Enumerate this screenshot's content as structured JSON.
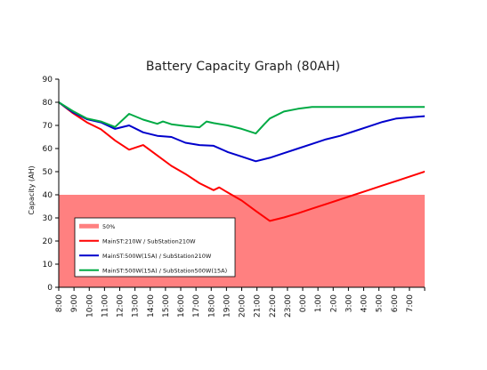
{
  "chart_data": {
    "type": "line",
    "title": "Battery Capacity Graph (80AH)",
    "ylabel": "Capacity (AH)",
    "xlabel": "",
    "ylim": [
      0,
      90
    ],
    "yticks": [
      "0",
      "10",
      "20",
      "30",
      "40",
      "50",
      "60",
      "70",
      "80",
      "90"
    ],
    "categories": [
      "8:00",
      "9:00",
      "10:00",
      "11:00",
      "12:00",
      "13:00",
      "14:00",
      "15:00",
      "16:00",
      "17:00",
      "18:00",
      "19:00",
      "20:00",
      "21:00",
      "22:00",
      "23:00",
      "0:00",
      "1:00",
      "2:00",
      "3:00",
      "4:00",
      "5:00",
      "6:00",
      "7:00"
    ],
    "x_range": [
      0,
      26
    ],
    "grid": "none",
    "legend_placement": "lower-left",
    "band": {
      "name": "50%",
      "from": 0,
      "to": 40,
      "color": "#ff8080"
    },
    "series": [
      {
        "name": "MainST:210W / SubStation210W",
        "color": "#ff0000",
        "points": [
          [
            0,
            80
          ],
          [
            1,
            75.3
          ],
          [
            2,
            71.3
          ],
          [
            3,
            68.3
          ],
          [
            4,
            63.5
          ],
          [
            5,
            59.5
          ],
          [
            6,
            61.5
          ],
          [
            7,
            57
          ],
          [
            8,
            52.5
          ],
          [
            9,
            49
          ],
          [
            10,
            45
          ],
          [
            11,
            42
          ],
          [
            11.4,
            43.2
          ],
          [
            12,
            41
          ],
          [
            13,
            37.5
          ],
          [
            14,
            33
          ],
          [
            15,
            28.7
          ],
          [
            16,
            30.2
          ],
          [
            17,
            32
          ],
          [
            18,
            34
          ],
          [
            19,
            36
          ],
          [
            20,
            38
          ],
          [
            21,
            40
          ],
          [
            22,
            42
          ],
          [
            23,
            44
          ],
          [
            24,
            46
          ],
          [
            25,
            48
          ],
          [
            26,
            50
          ],
          [
            27,
            52.5
          ]
        ]
      },
      {
        "name": "MainST:500W(15A) / SubStation210W",
        "color": "#0000cc",
        "points": [
          [
            0,
            80
          ],
          [
            1,
            75.7
          ],
          [
            2,
            72.7
          ],
          [
            3,
            71.3
          ],
          [
            4,
            68.5
          ],
          [
            5,
            70
          ],
          [
            6,
            67
          ],
          [
            7,
            65.5
          ],
          [
            8,
            65
          ],
          [
            9,
            62.5
          ],
          [
            10,
            61.5
          ],
          [
            11,
            61.2
          ],
          [
            12,
            58.5
          ],
          [
            13,
            56.5
          ],
          [
            14,
            54.5
          ],
          [
            15,
            56
          ],
          [
            16,
            58
          ],
          [
            17,
            60
          ],
          [
            18,
            62
          ],
          [
            19,
            64
          ],
          [
            20,
            65.5
          ],
          [
            21,
            67.5
          ],
          [
            22,
            69.5
          ],
          [
            23,
            71.5
          ],
          [
            24,
            73
          ],
          [
            25,
            73.5
          ],
          [
            26,
            74
          ],
          [
            27,
            74
          ]
        ]
      },
      {
        "name": "MainST:500W(15A) / SubStation500W(15A)",
        "color": "#00aa44",
        "points": [
          [
            0,
            80
          ],
          [
            1,
            76.2
          ],
          [
            2,
            73
          ],
          [
            3,
            71.7
          ],
          [
            4,
            69.3
          ],
          [
            5,
            75
          ],
          [
            6,
            72.5
          ],
          [
            7,
            70.7
          ],
          [
            7.4,
            71.7
          ],
          [
            8,
            70.5
          ],
          [
            9,
            69.7
          ],
          [
            10,
            69.2
          ],
          [
            10.5,
            71.7
          ],
          [
            11,
            71
          ],
          [
            12,
            70
          ],
          [
            13,
            68.5
          ],
          [
            14,
            66.5
          ],
          [
            14.6,
            70.5
          ],
          [
            15,
            73
          ],
          [
            16,
            76
          ],
          [
            17,
            77.2
          ],
          [
            18,
            78
          ],
          [
            19,
            78
          ],
          [
            20,
            78
          ],
          [
            21,
            78
          ],
          [
            22,
            78
          ],
          [
            23,
            78
          ],
          [
            24,
            78
          ],
          [
            25,
            78
          ],
          [
            26,
            78
          ],
          [
            27,
            78
          ]
        ]
      }
    ]
  }
}
